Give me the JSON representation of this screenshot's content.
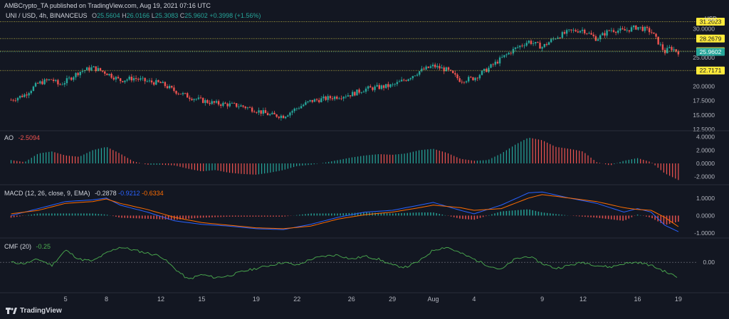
{
  "header": {
    "text": "AMBCrypto_TA published on TradingView.com, Aug 19, 2021 07:16 UTC"
  },
  "main_legend": {
    "symbol": "UNI / USD, 4h, BINANCEUS",
    "o_label": "O",
    "o": "25.5604",
    "h_label": "H",
    "h": "26.0166",
    "l_label": "L",
    "l": "25.3083",
    "c_label": "C",
    "c": "25.9602",
    "chg": "+0.3998 (+1.56%)"
  },
  "ao_legend": {
    "label": "AO",
    "value": "-2.5094"
  },
  "macd_legend": {
    "label": "MACD (12, 26, close, 9, EMA)",
    "v1": "-0.2878",
    "v2": "-0.9212",
    "v3": "-0.6334"
  },
  "cmf_legend": {
    "label": "CMF (20)",
    "value": "-0.25"
  },
  "currency": "USD",
  "brand": {
    "text": "TradingView"
  },
  "colors": {
    "bg": "#131722",
    "up": "#26a69a",
    "down": "#ef5350",
    "level": "#d4c84a",
    "macd": "#2962ff",
    "signal": "#ff6d00",
    "cmf": "#4caf50",
    "last_price": "#26a69a",
    "level_label_bg": "#ffeb3b"
  },
  "chart_data": [
    {
      "type": "candlestick",
      "title": "UNI / USD, 4h, BINANCEUS",
      "ylim": [
        12.5,
        32.5
      ],
      "yticks": [
        "30.0000",
        "25.0000",
        "20.0000",
        "17.5000",
        "15.0000",
        "12.5000"
      ],
      "ytick_values": [
        30,
        25,
        20,
        17.5,
        15,
        12.5
      ],
      "x_tick_labels": [
        "5",
        "8",
        "12",
        "15",
        "19",
        "22",
        "26",
        "29",
        "Aug",
        "4",
        "9",
        "12",
        "16",
        "19"
      ],
      "x_tick_days": [
        5,
        8,
        12,
        15,
        19,
        22,
        26,
        29,
        32,
        35,
        40,
        43,
        47,
        50
      ],
      "horizontal_levels": [
        {
          "value": 31.2023,
          "label": "31.2023"
        },
        {
          "value": 28.2679,
          "label": "28.2679"
        },
        {
          "value": 26.0718,
          "label": "26.0718"
        },
        {
          "value": 22.7171,
          "label": "22.7171"
        }
      ],
      "last_price": {
        "value": 25.9602,
        "label": "25.9602"
      },
      "path": [
        [
          1,
          17.6
        ],
        [
          2,
          18.5
        ],
        [
          3,
          20.5
        ],
        [
          4,
          21.2
        ],
        [
          4.5,
          20.2
        ],
        [
          5,
          20.8
        ],
        [
          6,
          22.5
        ],
        [
          7,
          23.2
        ],
        [
          8,
          22.3
        ],
        [
          9,
          21.0
        ],
        [
          10,
          21.4
        ],
        [
          11,
          20.8
        ],
        [
          12,
          20.5
        ],
        [
          13,
          19.2
        ],
        [
          14,
          18.2
        ],
        [
          15,
          17.5
        ],
        [
          16,
          17.0
        ],
        [
          17,
          16.8
        ],
        [
          18,
          16.5
        ],
        [
          19,
          15.8
        ],
        [
          20,
          15.0
        ],
        [
          21,
          14.8
        ],
        [
          22,
          16.2
        ],
        [
          23,
          17.4
        ],
        [
          24,
          17.8
        ],
        [
          25,
          18.2
        ],
        [
          26,
          18.6
        ],
        [
          27,
          19.5
        ],
        [
          28,
          19.8
        ],
        [
          29,
          20.1
        ],
        [
          30,
          21.2
        ],
        [
          31,
          22.6
        ],
        [
          32,
          23.5
        ],
        [
          33,
          22.8
        ],
        [
          34,
          21.0
        ],
        [
          35,
          21.4
        ],
        [
          36,
          23.0
        ],
        [
          37,
          24.8
        ],
        [
          38,
          26.5
        ],
        [
          39,
          27.8
        ],
        [
          40,
          26.8
        ],
        [
          41,
          28.5
        ],
        [
          42,
          29.5
        ],
        [
          43,
          29.8
        ],
        [
          44,
          28.2
        ],
        [
          45,
          29.8
        ],
        [
          46,
          29.6
        ],
        [
          47,
          30.3
        ],
        [
          48,
          29.5
        ],
        [
          49,
          25.9
        ],
        [
          49.4,
          26.7
        ],
        [
          50,
          25.96
        ]
      ]
    },
    {
      "type": "bar",
      "title": "AO",
      "ylim": [
        -3.0,
        4.5
      ],
      "yticks": [
        "4.0000",
        "2.0000",
        "0.0000",
        "-2.0000"
      ],
      "ytick_values": [
        4,
        2,
        0,
        -2
      ],
      "path": [
        [
          1,
          0.5
        ],
        [
          2,
          0.2
        ],
        [
          3,
          1.5
        ],
        [
          4,
          1.8
        ],
        [
          5,
          1.2
        ],
        [
          6,
          1.0
        ],
        [
          7,
          2.0
        ],
        [
          8,
          2.5
        ],
        [
          9,
          1.5
        ],
        [
          10,
          0.3
        ],
        [
          11,
          -0.2
        ],
        [
          12,
          -0.2
        ],
        [
          13,
          -0.3
        ],
        [
          14,
          -0.8
        ],
        [
          15,
          -1.2
        ],
        [
          16,
          -1.0
        ],
        [
          17,
          -1.4
        ],
        [
          18,
          -1.6
        ],
        [
          19,
          -1.7
        ],
        [
          20,
          -1.4
        ],
        [
          21,
          -1.0
        ],
        [
          22,
          -0.4
        ],
        [
          23,
          -0.2
        ],
        [
          24,
          0.1
        ],
        [
          25,
          0.5
        ],
        [
          26,
          0.9
        ],
        [
          27,
          1.2
        ],
        [
          28,
          1.4
        ],
        [
          29,
          1.3
        ],
        [
          30,
          1.5
        ],
        [
          31,
          2.0
        ],
        [
          32,
          2.2
        ],
        [
          33,
          1.6
        ],
        [
          34,
          0.7
        ],
        [
          35,
          0.4
        ],
        [
          36,
          0.5
        ],
        [
          37,
          1.5
        ],
        [
          38,
          2.8
        ],
        [
          39,
          3.9
        ],
        [
          40,
          3.5
        ],
        [
          41,
          2.5
        ],
        [
          42,
          2.2
        ],
        [
          43,
          1.8
        ],
        [
          44,
          0.2
        ],
        [
          45,
          -0.3
        ],
        [
          46,
          0.4
        ],
        [
          47,
          0.8
        ],
        [
          48,
          0.2
        ],
        [
          49,
          -1.5
        ],
        [
          50,
          -2.5
        ]
      ]
    },
    {
      "type": "line",
      "title": "MACD (12, 26, close, 9, EMA)",
      "ylim": [
        -1.2,
        1.6
      ],
      "yticks": [
        "1.0000",
        "0.0000",
        "-1.0000"
      ],
      "ytick_values": [
        1,
        0,
        -1
      ],
      "series": [
        {
          "values_path": [
            [
              1,
              0.0
            ],
            [
              3,
              0.4
            ],
            [
              5,
              0.8
            ],
            [
              7,
              0.9
            ],
            [
              8,
              1.0
            ],
            [
              9,
              0.6
            ],
            [
              11,
              0.2
            ],
            [
              13,
              -0.3
            ],
            [
              15,
              -0.5
            ],
            [
              17,
              -0.6
            ],
            [
              19,
              -0.75
            ],
            [
              21,
              -0.8
            ],
            [
              23,
              -0.5
            ],
            [
              25,
              -0.1
            ],
            [
              27,
              0.2
            ],
            [
              29,
              0.3
            ],
            [
              31,
              0.6
            ],
            [
              32,
              0.75
            ],
            [
              34,
              0.3
            ],
            [
              35,
              0.1
            ],
            [
              37,
              0.6
            ],
            [
              39,
              1.3
            ],
            [
              40,
              1.35
            ],
            [
              42,
              1.0
            ],
            [
              44,
              0.7
            ],
            [
              46,
              0.2
            ],
            [
              47,
              0.4
            ],
            [
              48,
              0.2
            ],
            [
              49,
              -0.55
            ],
            [
              50,
              -0.92
            ]
          ]
        },
        {
          "values_path": [
            [
              1,
              0.1
            ],
            [
              3,
              0.3
            ],
            [
              5,
              0.7
            ],
            [
              7,
              0.8
            ],
            [
              8,
              0.95
            ],
            [
              9,
              0.7
            ],
            [
              11,
              0.35
            ],
            [
              13,
              -0.1
            ],
            [
              15,
              -0.4
            ],
            [
              17,
              -0.55
            ],
            [
              19,
              -0.7
            ],
            [
              21,
              -0.75
            ],
            [
              23,
              -0.6
            ],
            [
              25,
              -0.2
            ],
            [
              27,
              0.05
            ],
            [
              29,
              0.2
            ],
            [
              31,
              0.45
            ],
            [
              32,
              0.6
            ],
            [
              34,
              0.45
            ],
            [
              35,
              0.3
            ],
            [
              37,
              0.4
            ],
            [
              39,
              1.0
            ],
            [
              40,
              1.2
            ],
            [
              42,
              1.0
            ],
            [
              44,
              0.8
            ],
            [
              46,
              0.45
            ],
            [
              47,
              0.35
            ],
            [
              48,
              0.3
            ],
            [
              49,
              -0.1
            ],
            [
              50,
              -0.63
            ]
          ]
        }
      ]
    },
    {
      "type": "line",
      "title": "CMF (20)",
      "ylim": [
        -0.45,
        0.35
      ],
      "yticks": [
        "0.00"
      ],
      "ytick_values": [
        0
      ],
      "path": [
        [
          1,
          0.0
        ],
        [
          2,
          -0.02
        ],
        [
          3,
          0.05
        ],
        [
          4,
          -0.05
        ],
        [
          5,
          0.2
        ],
        [
          6,
          0.05
        ],
        [
          7,
          0.02
        ],
        [
          8,
          0.15
        ],
        [
          9,
          0.25
        ],
        [
          10,
          0.2
        ],
        [
          11,
          0.15
        ],
        [
          12,
          0.1
        ],
        [
          13,
          -0.1
        ],
        [
          14,
          -0.28
        ],
        [
          15,
          -0.2
        ],
        [
          16,
          -0.25
        ],
        [
          17,
          -0.22
        ],
        [
          18,
          -0.15
        ],
        [
          19,
          -0.1
        ],
        [
          20,
          -0.05
        ],
        [
          21,
          0.0
        ],
        [
          22,
          -0.05
        ],
        [
          23,
          0.05
        ],
        [
          24,
          0.1
        ],
        [
          25,
          0.12
        ],
        [
          26,
          0.05
        ],
        [
          27,
          0.1
        ],
        [
          28,
          0.05
        ],
        [
          29,
          -0.05
        ],
        [
          30,
          -0.08
        ],
        [
          31,
          0.02
        ],
        [
          32,
          0.2
        ],
        [
          33,
          0.25
        ],
        [
          34,
          0.15
        ],
        [
          35,
          0.05
        ],
        [
          36,
          -0.05
        ],
        [
          37,
          -0.12
        ],
        [
          38,
          0.05
        ],
        [
          39,
          0.1
        ],
        [
          40,
          -0.02
        ],
        [
          41,
          -0.1
        ],
        [
          42,
          -0.05
        ],
        [
          43,
          0.0
        ],
        [
          44,
          -0.05
        ],
        [
          45,
          -0.08
        ],
        [
          46,
          -0.02
        ],
        [
          47,
          0.0
        ],
        [
          48,
          -0.05
        ],
        [
          49,
          -0.15
        ],
        [
          50,
          -0.25
        ]
      ]
    }
  ]
}
